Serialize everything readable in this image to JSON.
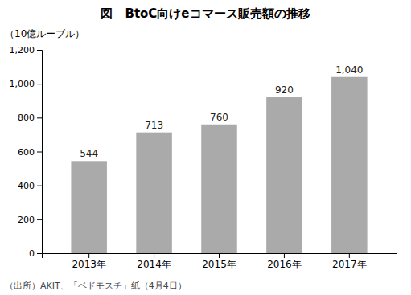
{
  "chart_data": {
    "type": "bar",
    "title": "図　BtoC向けeコマース販売額の推移",
    "ylabel": "（10億ルーブル）",
    "source": "（出所）AKIT、「ベドモスチ」紙（4月4日）",
    "categories": [
      "2013年",
      "2014年",
      "2015年",
      "2016年",
      "2017年"
    ],
    "values": [
      544,
      713,
      760,
      920,
      1040
    ],
    "value_labels": [
      "544",
      "713",
      "760",
      "920",
      "1,040"
    ],
    "data_labels": true,
    "color": "#aaaaaa",
    "ylim": [
      0,
      1200
    ],
    "yticks": [
      0,
      200,
      400,
      600,
      800,
      {
        "value": 1000,
        "label": "1,000"
      },
      {
        "value": 1200,
        "label": "1,200"
      }
    ],
    "grid": false
  }
}
